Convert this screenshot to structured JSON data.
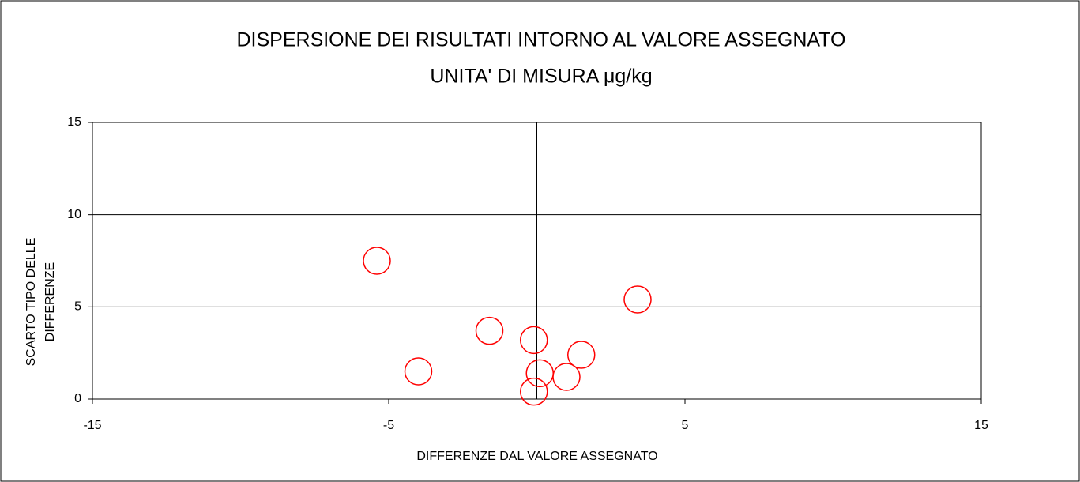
{
  "chart_data": {
    "type": "scatter",
    "title": [
      "DISPERSIONE DEI RISULTATI INTORNO AL VALORE ASSEGNATO",
      "UNITA' DI MISURA  μg/kg"
    ],
    "xlabel": "DIFFERENZE DAL VALORE ASSEGNATO",
    "ylabel": [
      "SCARTO TIPO DELLE",
      "DIFFERENZE"
    ],
    "x": [
      -5.4,
      -4.0,
      -1.6,
      -0.1,
      0.1,
      -0.1,
      1.0,
      1.5,
      3.4
    ],
    "values": [
      7.5,
      1.5,
      3.7,
      3.2,
      1.4,
      0.4,
      1.2,
      2.4,
      5.4
    ],
    "color": "#ff0000",
    "xlim": [
      -15,
      15
    ],
    "xticks": [
      -15,
      -5,
      5,
      15
    ],
    "ylim": [
      0,
      15
    ],
    "yticks": [
      0,
      5,
      10,
      15
    ],
    "grid": true
  }
}
